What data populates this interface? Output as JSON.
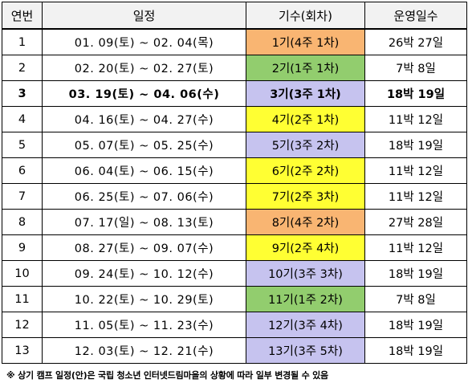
{
  "headers": {
    "no": "연번",
    "schedule": "일정",
    "session": "기수(회차)",
    "duration": "운영일수"
  },
  "rows": [
    {
      "no": "1",
      "schedule": "01. 09(토) ~ 02. 04(목)",
      "session": "1기(4주 1차)",
      "duration": "26박 27일",
      "color": "#f9b572",
      "bold": false
    },
    {
      "no": "2",
      "schedule": "02. 20(토) ~ 02. 27(토)",
      "session": "2기(1주 1차)",
      "duration": "7박 8일",
      "color": "#92cd6e",
      "bold": false
    },
    {
      "no": "3",
      "schedule": "03. 19(토) ~ 04. 06(수)",
      "session": "3기(3주 1차)",
      "duration": "18박 19일",
      "color": "#c6c3ef",
      "bold": true
    },
    {
      "no": "4",
      "schedule": "04. 16(토) ~ 04. 27(수)",
      "session": "4기(2주 1차)",
      "duration": "11박 12일",
      "color": "#ffff33",
      "bold": false
    },
    {
      "no": "5",
      "schedule": "05. 07(토) ~ 05. 25(수)",
      "session": "5기(3주 2차)",
      "duration": "18박 19일",
      "color": "#c6c3ef",
      "bold": false
    },
    {
      "no": "6",
      "schedule": "06. 04(토) ~ 06. 15(수)",
      "session": "6기(2주 2차)",
      "duration": "11박 12일",
      "color": "#ffff33",
      "bold": false
    },
    {
      "no": "7",
      "schedule": "06. 25(토) ~ 07. 06(수)",
      "session": "7기(2주 3차)",
      "duration": "11박 12일",
      "color": "#ffff33",
      "bold": false
    },
    {
      "no": "8",
      "schedule": "07. 17(일) ~ 08. 13(토)",
      "session": "8기(4주 2차)",
      "duration": "27박 28일",
      "color": "#f9b572",
      "bold": false
    },
    {
      "no": "9",
      "schedule": "08. 27(토) ~ 09. 07(수)",
      "session": "9기(2주 4차)",
      "duration": "11박 12일",
      "color": "#ffff33",
      "bold": false
    },
    {
      "no": "10",
      "schedule": "09. 24(토) ~ 10. 12(수)",
      "session": "10기(3주 3차)",
      "duration": "18박 19일",
      "color": "#c6c3ef",
      "bold": false
    },
    {
      "no": "11",
      "schedule": "10. 22(토) ~ 10. 29(토)",
      "session": "11기(1주 2차)",
      "duration": "7박 8일",
      "color": "#92cd6e",
      "bold": false
    },
    {
      "no": "12",
      "schedule": "11. 05(토) ~ 11. 23(수)",
      "session": "12기(3주 4차)",
      "duration": "18박 19일",
      "color": "#c6c3ef",
      "bold": false
    },
    {
      "no": "13",
      "schedule": "12. 03(토) ~ 12. 21(수)",
      "session": "13기(3주 5차)",
      "duration": "18박 19일",
      "color": "#c6c3ef",
      "bold": false
    }
  ],
  "note": "※ 상기 캠프 일정(안)은 국립 청소년 인터넷드림마을의 상황에 따라 일부 변경될 수 있음"
}
